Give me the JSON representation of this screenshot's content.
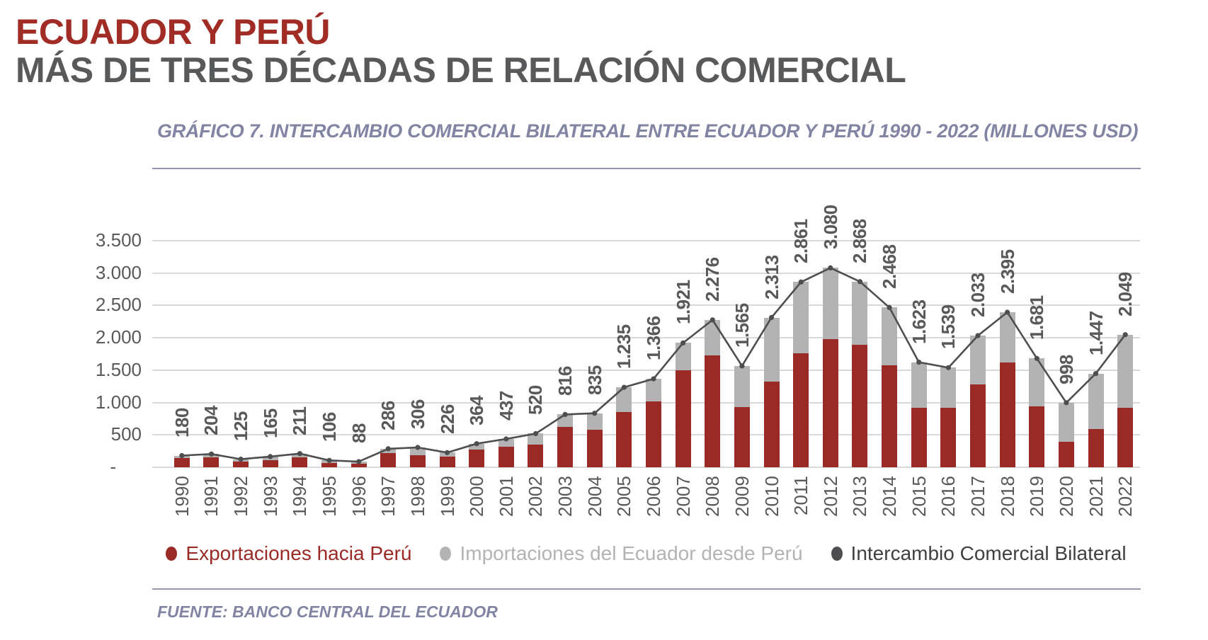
{
  "header": {
    "title_line1": "ECUADOR Y PERÚ",
    "title_line2": "MÁS DE TRES DÉCADAS DE RELACIÓN COMERCIAL"
  },
  "source": "FUENTE: BANCO CENTRAL DEL ECUADOR",
  "colors": {
    "title_red": "#A12C25",
    "title_gray": "#58595B",
    "accent_rule": "#9394AE",
    "subtitle_text": "#8184A2",
    "axis_text": "#58595B",
    "gridline": "#D9D9D9",
    "bar_export": "#9A2A25",
    "bar_import": "#B3B3B3",
    "line_total": "#4E4E50"
  },
  "chart_data": {
    "type": "combo-stacked-bar-line",
    "title": "GRÁFICO 7. INTERCAMBIO COMERCIAL BILATERAL ENTRE ECUADOR Y PERÚ 1990 - 2022 (MILLONES USD)",
    "unit": "MILLONES USD",
    "categories": [
      1990,
      1991,
      1992,
      1993,
      1994,
      1995,
      1996,
      1997,
      1998,
      1999,
      2000,
      2001,
      2002,
      2003,
      2004,
      2005,
      2006,
      2007,
      2008,
      2009,
      2010,
      2011,
      2012,
      2013,
      2014,
      2015,
      2016,
      2017,
      2018,
      2019,
      2020,
      2021,
      2022
    ],
    "series": [
      {
        "name": "Exportaciones hacia Perú",
        "type": "bar",
        "stacked": true,
        "color": "#9A2A25",
        "legend_text_color": "#9A2A25",
        "values": [
          140,
          153,
          85,
          105,
          148,
          65,
          55,
          217,
          190,
          163,
          275,
          320,
          350,
          625,
          585,
          855,
          1020,
          1495,
          1730,
          930,
          1325,
          1765,
          1985,
          1895,
          1575,
          920,
          920,
          1275,
          1615,
          940,
          390,
          595,
          920
        ]
      },
      {
        "name": "Importaciones del Ecuador desde Perú",
        "type": "bar",
        "stacked": true,
        "color": "#B3B3B3",
        "legend_text_color": "#B3B3B3",
        "values": [
          40,
          51,
          40,
          60,
          63,
          41,
          33,
          69,
          116,
          63,
          89,
          117,
          170,
          191,
          250,
          380,
          346,
          426,
          546,
          635,
          988,
          1096,
          1095,
          973,
          893,
          703,
          619,
          758,
          780,
          741,
          608,
          852,
          1129
        ]
      },
      {
        "name": "Intercambio Comercial Bilateral",
        "type": "line",
        "color": "#4E4E50",
        "legend_text_color": "#3F4042",
        "values": [
          180,
          204,
          125,
          165,
          211,
          106,
          88,
          286,
          306,
          226,
          364,
          437,
          520,
          816,
          835,
          1235,
          1366,
          1921,
          2276,
          1565,
          2313,
          2861,
          3080,
          2868,
          2468,
          1623,
          1539,
          2033,
          2395,
          1681,
          998,
          1447,
          2049
        ],
        "data_labels": [
          "180",
          "204",
          "125",
          "165",
          "211",
          "106",
          "88",
          "286",
          "306",
          "226",
          "364",
          "437",
          "520",
          "816",
          "835",
          "1.235",
          "1.366",
          "1.921",
          "2.276",
          "1.565",
          "2.313",
          "2.861",
          "3.080",
          "2.868",
          "2.468",
          "1.623",
          "1.539",
          "2.033",
          "2.395",
          "1.681",
          "998",
          "1.447",
          "2.049"
        ]
      }
    ],
    "y_axis": {
      "tick_labels": [
        "3.500",
        "3.000",
        "2.500",
        "2.000",
        "1.500",
        "1.000",
        "500",
        "-"
      ],
      "tick_values": [
        3500,
        3000,
        2500,
        2000,
        1500,
        1000,
        500,
        0
      ],
      "min": 0,
      "max": 3500,
      "gridlines": true
    },
    "ylim": [
      0,
      3500
    ],
    "legend_position": "bottom"
  }
}
